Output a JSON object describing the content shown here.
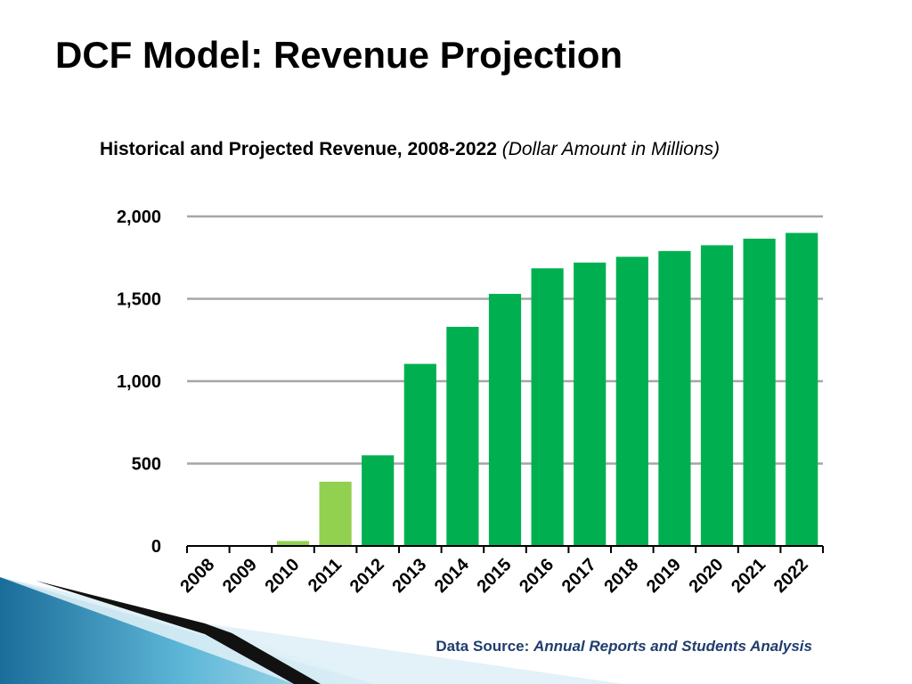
{
  "slide": {
    "title": "DCF Model: Revenue Projection"
  },
  "chart_data": {
    "type": "bar",
    "title": "Historical and Projected Revenue, 2008-2022",
    "subtitle": "(Dollar Amount in Millions)",
    "categories": [
      "2008",
      "2009",
      "2010",
      "2011",
      "2012",
      "2013",
      "2014",
      "2015",
      "2016",
      "2017",
      "2018",
      "2019",
      "2020",
      "2021",
      "2022"
    ],
    "values": [
      0,
      0,
      30,
      390,
      550,
      1105,
      1330,
      1530,
      1685,
      1720,
      1755,
      1790,
      1825,
      1865,
      1900
    ],
    "historical_count": 4,
    "colors": {
      "historical": "#92d050",
      "projected": "#00b050",
      "grid": "#a6a6a6"
    },
    "ylim": [
      0,
      2000
    ],
    "yticks": [
      0,
      500,
      1000,
      1500,
      2000
    ],
    "ytick_labels": [
      "0",
      "500",
      "1,000",
      "1,500",
      "2,000"
    ],
    "grid": true,
    "xlabel": "",
    "ylabel": ""
  },
  "source": {
    "label": "Data Source:",
    "text": "Annual Reports and Students Analysis"
  }
}
